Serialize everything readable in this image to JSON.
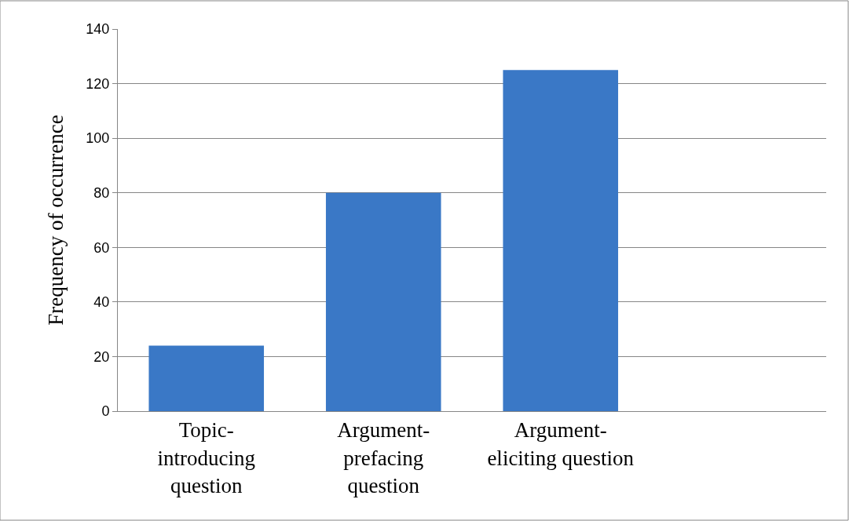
{
  "chart_data": {
    "type": "bar",
    "ylabel": "Frequency of occurrence",
    "categories": [
      "Topic-\nintroducing\nquestion",
      "Argument-\nprefacing\nquestion",
      "Argument-\neliciting question",
      null
    ],
    "values": [
      24,
      80,
      125,
      null
    ],
    "color": "#3a78c6",
    "ylim": [
      0,
      140
    ],
    "yticks": [
      0,
      20,
      40,
      60,
      80,
      100,
      120,
      140
    ],
    "grid": "y"
  }
}
